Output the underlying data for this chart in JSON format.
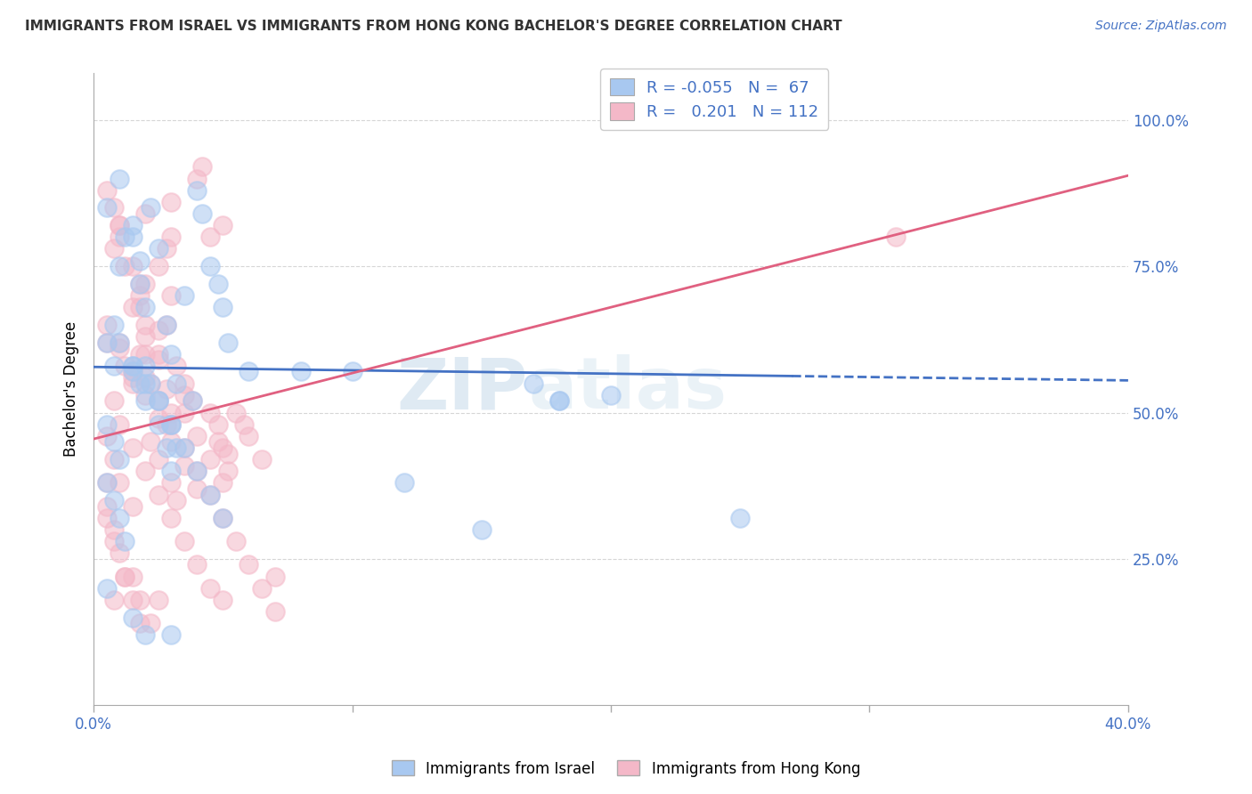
{
  "title": "IMMIGRANTS FROM ISRAEL VS IMMIGRANTS FROM HONG KONG BACHELOR'S DEGREE CORRELATION CHART",
  "source": "Source: ZipAtlas.com",
  "ylabel": "Bachelor's Degree",
  "ytick_labels": [
    "25.0%",
    "50.0%",
    "75.0%",
    "100.0%"
  ],
  "ytick_values": [
    0.25,
    0.5,
    0.75,
    1.0
  ],
  "xlim": [
    0.0,
    0.4
  ],
  "ylim": [
    0.0,
    1.08
  ],
  "legend_r_israel": "-0.055",
  "legend_n_israel": "67",
  "legend_r_hk": "0.201",
  "legend_n_hk": "112",
  "color_israel": "#a8c8f0",
  "color_hk": "#f4b8c8",
  "line_color_israel": "#4472c4",
  "line_color_hk": "#e06080",
  "watermark_zip": "ZIP",
  "watermark_atlas": "atlas",
  "israel_x": [
    0.005,
    0.008,
    0.01,
    0.012,
    0.015,
    0.018,
    0.02,
    0.022,
    0.025,
    0.028,
    0.03,
    0.032,
    0.035,
    0.038,
    0.04,
    0.042,
    0.045,
    0.048,
    0.05,
    0.052,
    0.005,
    0.008,
    0.01,
    0.015,
    0.018,
    0.02,
    0.022,
    0.025,
    0.03,
    0.032,
    0.005,
    0.008,
    0.01,
    0.012,
    0.015,
    0.018,
    0.02,
    0.025,
    0.028,
    0.03,
    0.008,
    0.01,
    0.015,
    0.02,
    0.025,
    0.03,
    0.035,
    0.04,
    0.045,
    0.05,
    0.005,
    0.01,
    0.015,
    0.17,
    0.2,
    0.12,
    0.15,
    0.06,
    0.25,
    0.18,
    0.005,
    0.015,
    0.02,
    0.03,
    0.18,
    0.1,
    0.08
  ],
  "israel_y": [
    0.62,
    0.58,
    0.75,
    0.8,
    0.82,
    0.72,
    0.68,
    0.85,
    0.78,
    0.65,
    0.6,
    0.55,
    0.7,
    0.52,
    0.88,
    0.84,
    0.75,
    0.72,
    0.68,
    0.62,
    0.48,
    0.45,
    0.42,
    0.8,
    0.76,
    0.58,
    0.55,
    0.52,
    0.48,
    0.44,
    0.38,
    0.35,
    0.32,
    0.28,
    0.58,
    0.55,
    0.52,
    0.48,
    0.44,
    0.4,
    0.65,
    0.62,
    0.58,
    0.55,
    0.52,
    0.48,
    0.44,
    0.4,
    0.36,
    0.32,
    0.85,
    0.9,
    0.57,
    0.55,
    0.53,
    0.38,
    0.3,
    0.57,
    0.32,
    0.52,
    0.2,
    0.15,
    0.12,
    0.12,
    0.52,
    0.57,
    0.57
  ],
  "hk_x": [
    0.005,
    0.008,
    0.01,
    0.012,
    0.015,
    0.018,
    0.02,
    0.022,
    0.025,
    0.028,
    0.03,
    0.032,
    0.035,
    0.038,
    0.04,
    0.042,
    0.045,
    0.048,
    0.05,
    0.052,
    0.005,
    0.008,
    0.01,
    0.015,
    0.018,
    0.02,
    0.022,
    0.025,
    0.03,
    0.032,
    0.005,
    0.008,
    0.01,
    0.012,
    0.015,
    0.018,
    0.02,
    0.025,
    0.028,
    0.03,
    0.008,
    0.01,
    0.015,
    0.02,
    0.025,
    0.03,
    0.035,
    0.04,
    0.045,
    0.05,
    0.005,
    0.01,
    0.015,
    0.02,
    0.025,
    0.03,
    0.035,
    0.04,
    0.045,
    0.05,
    0.005,
    0.008,
    0.01,
    0.012,
    0.015,
    0.018,
    0.02,
    0.025,
    0.028,
    0.03,
    0.005,
    0.008,
    0.01,
    0.015,
    0.018,
    0.02,
    0.025,
    0.03,
    0.035,
    0.04,
    0.045,
    0.05,
    0.055,
    0.06,
    0.065,
    0.07,
    0.005,
    0.01,
    0.015,
    0.02,
    0.025,
    0.03,
    0.035,
    0.04,
    0.045,
    0.05,
    0.055,
    0.06,
    0.065,
    0.07,
    0.008,
    0.012,
    0.018,
    0.022,
    0.028,
    0.035,
    0.31,
    0.048,
    0.052,
    0.058,
    0.015,
    0.025
  ],
  "hk_y": [
    0.62,
    0.78,
    0.82,
    0.75,
    0.68,
    0.72,
    0.84,
    0.55,
    0.6,
    0.65,
    0.7,
    0.58,
    0.55,
    0.52,
    0.9,
    0.92,
    0.5,
    0.48,
    0.44,
    0.4,
    0.38,
    0.85,
    0.8,
    0.75,
    0.7,
    0.65,
    0.45,
    0.42,
    0.38,
    0.35,
    0.32,
    0.28,
    0.62,
    0.58,
    0.55,
    0.68,
    0.72,
    0.75,
    0.78,
    0.8,
    0.52,
    0.48,
    0.44,
    0.4,
    0.36,
    0.32,
    0.28,
    0.24,
    0.2,
    0.18,
    0.88,
    0.82,
    0.56,
    0.6,
    0.64,
    0.86,
    0.5,
    0.46,
    0.42,
    0.38,
    0.34,
    0.3,
    0.26,
    0.22,
    0.18,
    0.14,
    0.63,
    0.59,
    0.54,
    0.5,
    0.46,
    0.42,
    0.38,
    0.34,
    0.6,
    0.56,
    0.52,
    0.48,
    0.44,
    0.4,
    0.36,
    0.32,
    0.28,
    0.24,
    0.2,
    0.16,
    0.65,
    0.61,
    0.57,
    0.53,
    0.49,
    0.45,
    0.41,
    0.37,
    0.8,
    0.82,
    0.5,
    0.46,
    0.42,
    0.22,
    0.18,
    0.22,
    0.18,
    0.14,
    0.48,
    0.53,
    0.8,
    0.45,
    0.43,
    0.48,
    0.22,
    0.18
  ],
  "israel_line": {
    "x0": 0.0,
    "y0": 0.578,
    "x1": 0.4,
    "y1": 0.555
  },
  "hk_line": {
    "x0": 0.0,
    "y0": 0.455,
    "x1": 0.4,
    "y1": 0.905
  },
  "xticks": [
    0.0,
    0.1,
    0.2,
    0.3,
    0.4
  ],
  "xtick_labels_show": [
    "0.0%",
    "",
    "",
    "",
    "40.0%"
  ]
}
